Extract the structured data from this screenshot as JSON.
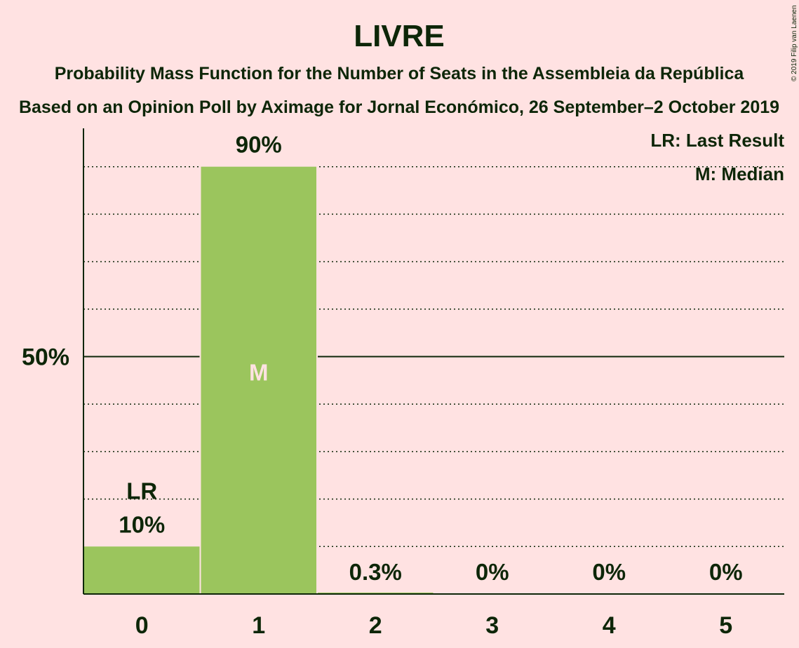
{
  "title": "LIVRE",
  "subtitle1": "Probability Mass Function for the Number of Seats in the Assembleia da República",
  "subtitle2": "Based on an Opinion Poll by Aximage for Jornal Económico, 26 September–2 October 2019",
  "copyright": "© 2019 Filip van Laenen",
  "legend": {
    "lr": "LR: Last Result",
    "m": "M: Median"
  },
  "colors": {
    "background": "#FFE2E2",
    "bar": "#9BC55D",
    "text": "#0D2608"
  },
  "chart_data": {
    "type": "bar",
    "categories": [
      "0",
      "1",
      "2",
      "3",
      "4",
      "5"
    ],
    "values": [
      10,
      90,
      0.3,
      0,
      0,
      0
    ],
    "value_labels": [
      "10%",
      "90%",
      "0.3%",
      "0%",
      "0%",
      "0%"
    ],
    "ylim": [
      0,
      100
    ],
    "yticks": [
      {
        "value": 50,
        "label": "50%"
      }
    ],
    "grid": "dotted, every 10%",
    "last_result": {
      "category": "0",
      "label": "LR"
    },
    "median": {
      "category": "1",
      "label": "M"
    },
    "legend_position": "top-right"
  }
}
